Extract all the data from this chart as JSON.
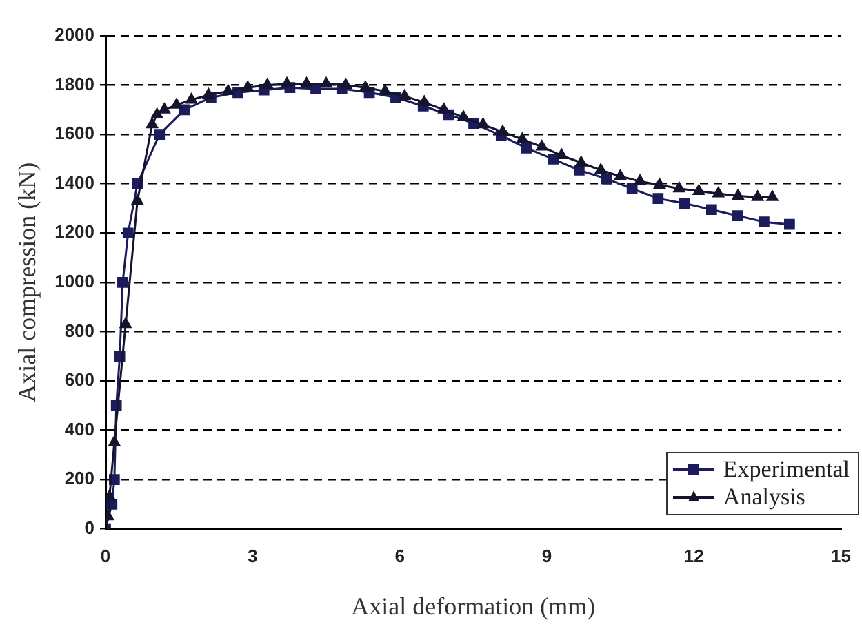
{
  "chart_data": {
    "type": "line",
    "xlabel": "Axial deformation (mm)",
    "ylabel": "Axial compression (kN)",
    "xlim": [
      0,
      15
    ],
    "xticks": [
      0,
      3,
      6,
      9,
      12,
      15
    ],
    "ylim": [
      0,
      2000
    ],
    "yticks": [
      0,
      200,
      400,
      600,
      800,
      1000,
      1200,
      1400,
      1600,
      1800,
      2000
    ],
    "grid": "y",
    "legend": "bottom right",
    "line_style": "solid",
    "series": [
      {
        "name": "Experimental",
        "color": "#1c1c5c",
        "marker": "square",
        "x": [
          0,
          0.13,
          0.18,
          0.22,
          0.29,
          0.35,
          0.46,
          0.65,
          1.1,
          1.61,
          2.15,
          2.7,
          3.23,
          3.76,
          4.29,
          4.82,
          5.38,
          5.92,
          6.48,
          7.0,
          7.51,
          8.07,
          8.58,
          9.13,
          9.66,
          10.22,
          10.74,
          11.27,
          11.81,
          12.36,
          12.89,
          13.43,
          13.95
        ],
        "values": [
          0,
          100,
          200,
          500,
          700,
          1000,
          1200,
          1400,
          1600,
          1700,
          1750,
          1770,
          1780,
          1790,
          1785,
          1785,
          1770,
          1750,
          1715,
          1680,
          1645,
          1595,
          1545,
          1500,
          1455,
          1420,
          1380,
          1340,
          1320,
          1295,
          1270,
          1245,
          1235
        ]
      },
      {
        "name": "Analysis",
        "color": "#14142e",
        "marker": "triangle",
        "x": [
          0,
          0.05,
          0.08,
          0.18,
          0.41,
          0.65,
          0.95,
          1.05,
          1.2,
          1.45,
          1.75,
          2.1,
          2.5,
          2.9,
          3.3,
          3.7,
          4.1,
          4.5,
          4.9,
          5.3,
          5.7,
          6.1,
          6.5,
          6.9,
          7.3,
          7.7,
          8.1,
          8.5,
          8.9,
          9.3,
          9.7,
          10.1,
          10.5,
          10.9,
          11.3,
          11.7,
          12.1,
          12.5,
          12.9,
          13.3,
          13.6
        ],
        "values": [
          0,
          50,
          130,
          350,
          830,
          1330,
          1640,
          1680,
          1700,
          1720,
          1740,
          1760,
          1775,
          1790,
          1800,
          1805,
          1805,
          1805,
          1800,
          1790,
          1775,
          1755,
          1730,
          1700,
          1670,
          1640,
          1610,
          1580,
          1550,
          1515,
          1485,
          1455,
          1430,
          1410,
          1395,
          1380,
          1370,
          1360,
          1350,
          1345,
          1345
        ]
      }
    ]
  }
}
